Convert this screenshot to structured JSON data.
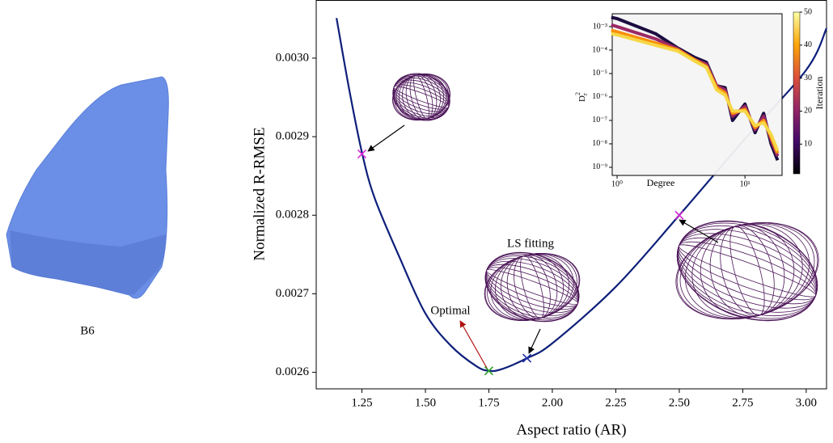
{
  "panel_label": "B6",
  "chart_data": [
    {
      "type": "line",
      "xlabel": "Aspect ratio (AR)",
      "ylabel": "Normalized R-RMSE",
      "x": [
        1.15,
        1.2,
        1.25,
        1.3,
        1.4,
        1.5,
        1.6,
        1.7,
        1.75,
        1.8,
        1.9,
        2.0,
        2.25,
        2.5,
        2.75,
        3.0,
        3.08
      ],
      "series": [
        {
          "color": "#0d1f7a",
          "values": [
            0.003051,
            0.00296,
            0.00288,
            0.002822,
            0.002745,
            0.002675,
            0.002634,
            0.002608,
            0.002602,
            0.002604,
            0.002618,
            0.002637,
            0.002709,
            0.0028,
            0.002894,
            0.002985,
            0.003038
          ]
        }
      ],
      "markers": [
        {
          "x": 1.25,
          "y": 0.002878,
          "color": "#d62ad6"
        },
        {
          "x": 1.75,
          "y": 0.002602,
          "color": "#2ca02c"
        },
        {
          "x": 1.9,
          "y": 0.002618,
          "color": "#1f2fa8"
        },
        {
          "x": 2.5,
          "y": 0.0028,
          "color": "#d62ad6"
        }
      ],
      "annotations": [
        {
          "text": "LS fitting",
          "color": "#000000"
        },
        {
          "text": "Optimal",
          "color": "#e8141b"
        }
      ],
      "xlim": [
        1.07,
        3.08
      ],
      "xticks": [
        1.25,
        {
          "value": 1.5,
          "label": "1.50"
        },
        1.75,
        {
          "value": 2.0,
          "label": "2.00"
        },
        2.25,
        {
          "value": 2.5,
          "label": "2.50"
        },
        2.75,
        {
          "value": 3.0,
          "label": "3.00"
        }
      ],
      "ylim": [
        0.002579,
        0.003074
      ],
      "yticks": [
        0.0026,
        0.0027,
        0.0028,
        0.0029,
        {
          "value": 0.003,
          "label": "0.0030"
        }
      ]
    },
    {
      "type": "line",
      "log": true,
      "xlabel": "Degree",
      "ylabel": {
        "base": "D",
        "sub": "r",
        "sup": "2"
      },
      "x": [
        0.9,
        1,
        2,
        3,
        4,
        5,
        6,
        7,
        8,
        10,
        12,
        14,
        16,
        18
      ],
      "series": [
        {
          "color": "#1b0c41",
          "values": [
            0.0025,
            0.0022,
            0.0005,
            0.00012,
            5e-05,
            3e-05,
            3e-06,
            2.5e-06,
            1e-07,
            5e-07,
            3e-08,
            2e-07,
            1e-08,
            2e-09
          ]
        },
        {
          "color": "#9b2964",
          "values": [
            0.0012,
            0.001,
            0.0003,
            0.00011,
            4e-05,
            2.5e-05,
            3e-06,
            2e-06,
            1.5e-07,
            4e-07,
            4e-08,
            1.5e-07,
            1.5e-08,
            3e-09
          ]
        },
        {
          "color": "#f98e09",
          "values": [
            0.0007,
            0.0006,
            0.0002,
            0.0001,
            4e-05,
            2e-05,
            2.5e-06,
            1.5e-06,
            2e-07,
            3e-07,
            5e-08,
            1e-07,
            2e-08,
            4e-09
          ]
        },
        {
          "color": "#f6d746",
          "values": [
            0.0005,
            0.00045,
            0.00016,
            9e-05,
            3.5e-05,
            1.8e-05,
            2e-06,
            1.2e-06,
            2.5e-07,
            2.5e-07,
            6e-08,
            8e-08,
            2.5e-08,
            5e-09
          ]
        }
      ],
      "xlim": [
        0.916,
        19.5
      ],
      "xticks": [
        {
          "value": 1,
          "label": "10⁰"
        },
        {
          "value": 10,
          "label": "10¹"
        }
      ],
      "ylim": [
        4.5e-10,
        0.00355
      ],
      "yticks": [
        {
          "value": 0.001,
          "label": "10⁻³"
        },
        {
          "value": 0.0001,
          "label": "10⁻⁴"
        },
        {
          "value": 1e-05,
          "label": "10⁻⁵"
        },
        {
          "value": 1e-06,
          "label": "10⁻⁶"
        },
        {
          "value": 1e-07,
          "label": "10⁻⁷"
        },
        {
          "value": 1e-08,
          "label": "10⁻⁸"
        },
        {
          "value": 1e-09,
          "label": "10⁻⁹"
        }
      ],
      "colorbar": {
        "label": "Iteration",
        "lim": [
          1,
          50
        ],
        "ticks": [
          10,
          20,
          30,
          40,
          50
        ],
        "colors": [
          "#000004",
          "#420a68",
          "#932667",
          "#dd513a",
          "#fca50a",
          "#fcffa4"
        ]
      }
    }
  ]
}
